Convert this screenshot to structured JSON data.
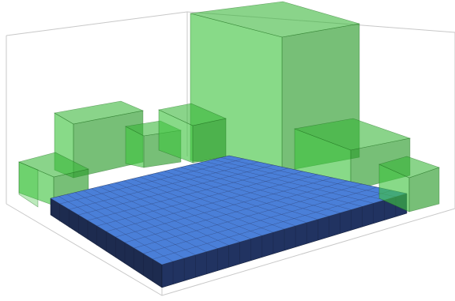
{
  "scene": {
    "colors": {
      "background": "#ffffff",
      "bounding_box": "#c8c8c8",
      "obstacle": "#3fc43f",
      "platform_top": "#4a7fd8",
      "platform_side": "#1d2b4f"
    },
    "platform": {
      "grid_rows": 12,
      "grid_cols": 22
    },
    "obstacle_count": 9
  }
}
